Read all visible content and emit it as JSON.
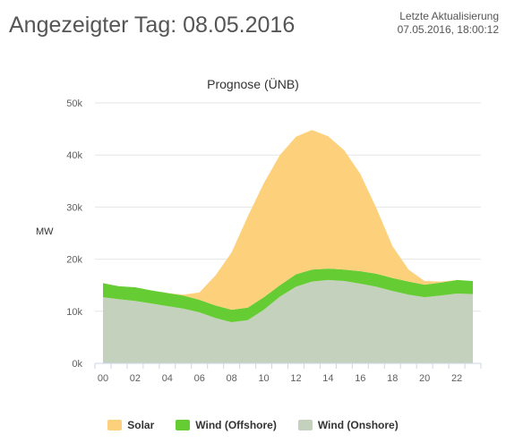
{
  "header": {
    "title": "Angezeigter Tag: 08.05.2016",
    "update_label": "Letzte Aktualisierung",
    "update_value": "07.05.2016, 18:00:12"
  },
  "chart_data": {
    "type": "area",
    "stacked": true,
    "title": "Prognose (ÜNB)",
    "xlabel": "",
    "ylabel": "MW",
    "x": [
      0,
      1,
      2,
      3,
      4,
      5,
      6,
      7,
      8,
      9,
      10,
      11,
      12,
      13,
      14,
      15,
      16,
      17,
      18,
      19,
      20,
      21,
      22,
      23
    ],
    "x_tick_labels": [
      "00",
      "02",
      "04",
      "06",
      "08",
      "10",
      "12",
      "14",
      "16",
      "18",
      "20",
      "22"
    ],
    "y_tick_labels": [
      "0k",
      "10k",
      "20k",
      "30k",
      "40k",
      "50k"
    ],
    "ylim": [
      0,
      50000
    ],
    "grid": true,
    "legend_position": "bottom",
    "series": [
      {
        "name": "Wind (Onshore)",
        "color": "#c4d1bd",
        "values": [
          12700,
          12300,
          12000,
          11500,
          11000,
          10500,
          9800,
          8700,
          7900,
          8300,
          10300,
          12800,
          14700,
          15700,
          16000,
          15800,
          15300,
          14700,
          13900,
          13200,
          12700,
          13000,
          13400,
          13300
        ]
      },
      {
        "name": "Wind (Offshore)",
        "color": "#66cc33",
        "values": [
          2700,
          2500,
          2600,
          2500,
          2500,
          2500,
          2400,
          2400,
          2400,
          2400,
          2400,
          2200,
          2400,
          2300,
          2200,
          2200,
          2400,
          2500,
          2500,
          2500,
          2400,
          2500,
          2600,
          2500
        ]
      },
      {
        "name": "Solar",
        "color": "#fdd17c",
        "values": [
          0,
          0,
          0,
          0,
          0,
          200,
          1400,
          5800,
          11000,
          17500,
          21900,
          25000,
          26400,
          26800,
          25400,
          22900,
          18700,
          12600,
          6100,
          2300,
          700,
          200,
          0,
          0
        ]
      }
    ],
    "legend_order": [
      "Solar",
      "Wind (Offshore)",
      "Wind (Onshore)"
    ]
  }
}
